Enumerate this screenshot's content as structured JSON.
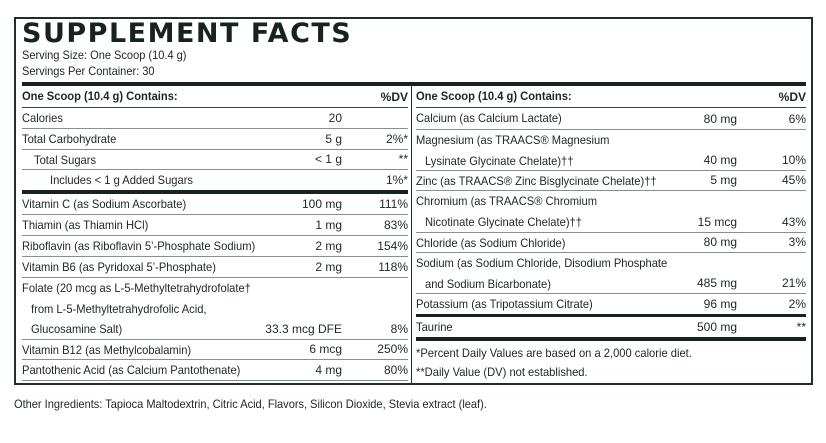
{
  "title": "SUPPLEMENT FACTS",
  "serving_size": "Serving Size: One Scoop (10.4 g)",
  "servings_per_container": "Servings Per Container: 30",
  "header": {
    "contains": "One Scoop (10.4 g) Contains:",
    "dv": "%DV"
  },
  "left_rows": [
    {
      "lines": [
        "Calories"
      ],
      "amount": "20",
      "dv": "",
      "h": 21
    },
    {
      "lines": [
        "Total Carbohydrate"
      ],
      "amount": "5 g",
      "dv": "2%*",
      "h": 21
    },
    {
      "lines": [
        "Total Sugars"
      ],
      "indent": 1,
      "amount": "< 1 g",
      "dv": "**",
      "h": 20
    },
    {
      "lines": [
        "Includes < 1 g Added Sugars"
      ],
      "indent": 2,
      "amount": "",
      "dv": "1%*",
      "h": 24,
      "rule": "thick"
    },
    {
      "lines": [
        "Vitamin C (as Sodium Ascorbate)"
      ],
      "amount": "100 mg",
      "dv": "111%",
      "h": 21
    },
    {
      "lines": [
        "Thiamin (as Thiamin HCl)"
      ],
      "amount": "1 mg",
      "dv": "83%",
      "h": 21
    },
    {
      "lines": [
        "Riboflavin (as Riboflavin 5’-Phosphate Sodium)"
      ],
      "amount": "2 mg",
      "dv": "154%",
      "h": 21
    },
    {
      "lines": [
        "Vitamin B6 (as Pyridoxal 5’-Phosphate)"
      ],
      "amount": "2 mg",
      "dv": "118%",
      "h": 21
    },
    {
      "lines": [
        "Folate (20 mcg as L-5-Methyltetrahydrofolate†",
        "from L-5-Methyltetrahydrofolic Acid,",
        "Glucosamine Salt)"
      ],
      "amount": "33.3 mcg DFE",
      "dv": "8%",
      "h": 62
    },
    {
      "lines": [
        "Vitamin B12 (as Methylcobalamin)"
      ],
      "amount": "6 mcg",
      "dv": "250%",
      "h": 20
    },
    {
      "lines": [
        "Pantothenic Acid (as Calcium Pantothenate)"
      ],
      "amount": "4 mg",
      "dv": "80%",
      "h": 21
    }
  ],
  "right_rows": [
    {
      "lines": [
        "Calcium (as Calcium Lactate)"
      ],
      "amount": "80 mg",
      "dv": "6%",
      "h": 22
    },
    {
      "lines": [
        "Magnesium (as TRAACS® Magnesium",
        "Lysinate Glycinate Chelate)††"
      ],
      "amount": "40 mg",
      "dv": "10%",
      "h": 41
    },
    {
      "lines": [
        "Zinc (as TRAACS® Zinc Bisglycinate Chelate)††"
      ],
      "amount": "5 mg",
      "dv": "45%",
      "h": 20
    },
    {
      "lines": [
        "Chromium (as TRAACS® Chromium",
        "Nicotinate Glycinate Chelate)††"
      ],
      "amount": "15 mcg",
      "dv": "43%",
      "h": 42
    },
    {
      "lines": [
        "Chloride (as Sodium Chloride)"
      ],
      "amount": "80 mg",
      "dv": "3%",
      "h": 20
    },
    {
      "lines": [
        "Sodium (as Sodium Chloride, Disodium Phosphate",
        "and Sodium Bicarbonate)"
      ],
      "amount": "485 mg",
      "dv": "21%",
      "h": 41
    },
    {
      "lines": [
        "Potassium (as Tripotassium Citrate)"
      ],
      "amount": "96 mg",
      "dv": "2%",
      "h": 23,
      "rule": "thick3"
    },
    {
      "lines": [
        "Taurine"
      ],
      "amount": "500 mg",
      "dv": "**",
      "h": 24,
      "rule": "thick"
    }
  ],
  "footnotes": [
    "*Percent Daily Values are based on a 2,000 calorie diet.",
    "**Daily Value (DV) not established."
  ],
  "other_ingredients": "Other Ingredients: Tapioca Maltodextrin, Citric Acid, Flavors, Silicon Dioxide, Stevia extract (leaf)."
}
